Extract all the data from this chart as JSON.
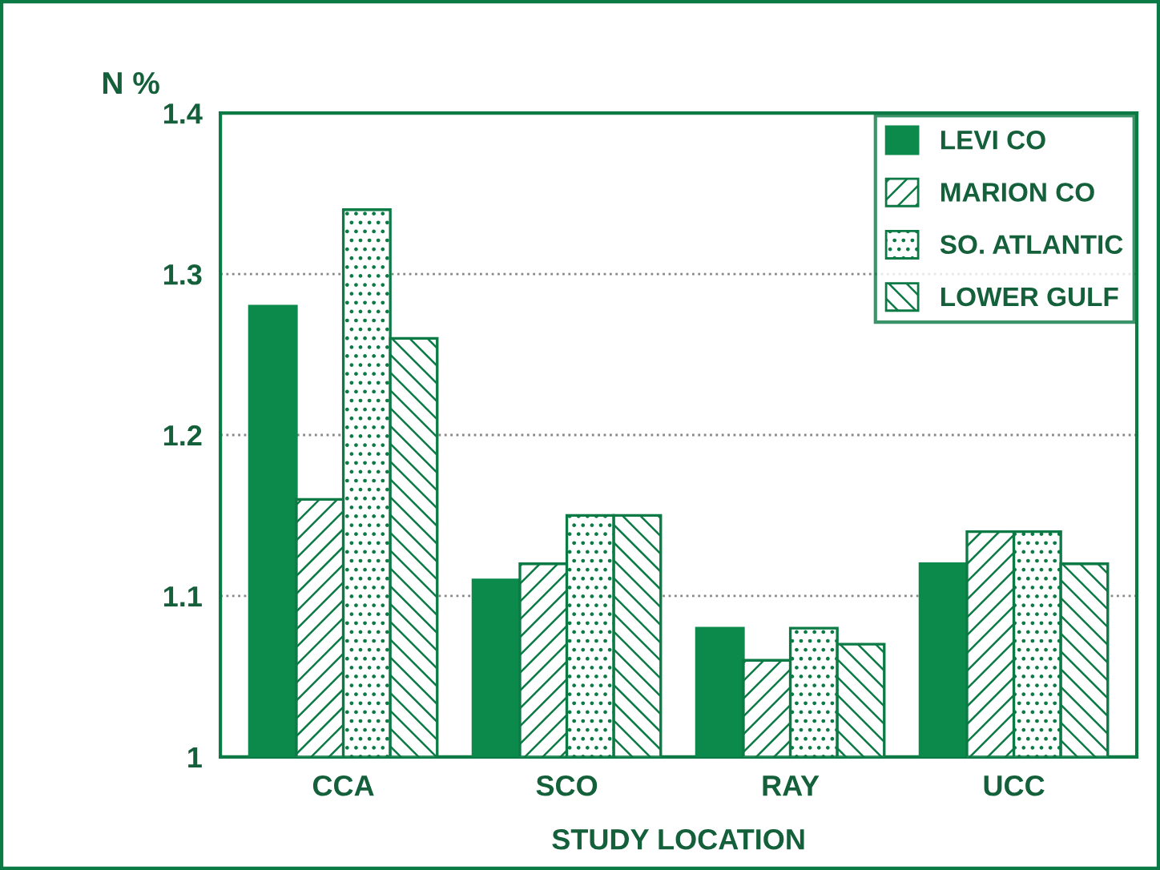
{
  "chart_data": {
    "type": "bar",
    "ylabel": "N %",
    "xlabel": "STUDY LOCATION",
    "categories": [
      "CCA",
      "SCO",
      "RAY",
      "UCC"
    ],
    "series": [
      {
        "name": "LEVI CO",
        "color": "#0b8a4c",
        "values": [
          1.28,
          1.11,
          1.08,
          1.12
        ]
      },
      {
        "name": "MARION CO",
        "color": "#0b7a44",
        "values": [
          1.16,
          1.12,
          1.06,
          1.14
        ]
      },
      {
        "name": "SO. ATLANTIC",
        "color": "#0b7a44",
        "values": [
          1.34,
          1.15,
          1.08,
          1.14
        ]
      },
      {
        "name": "LOWER GULF",
        "color": "#0b7a44",
        "values": [
          1.26,
          1.15,
          1.07,
          1.12
        ]
      }
    ],
    "ylim": [
      1,
      1.4
    ],
    "yticks": [
      {
        "value": 1,
        "label": "1"
      },
      1.1,
      1.2,
      1.3,
      1.4
    ],
    "grid": "y",
    "legend": "top right"
  }
}
